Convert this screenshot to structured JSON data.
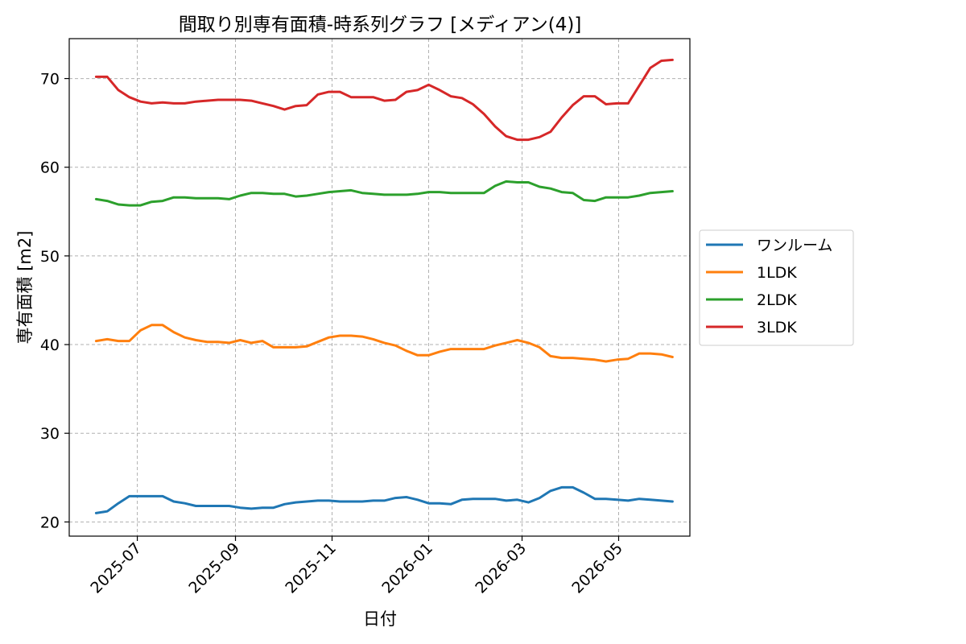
{
  "chart_data": {
    "type": "line",
    "title": "間取り別専有面積-時系列グラフ [メディアン(4)]",
    "xlabel": "日付",
    "ylabel": "専有面積 [m2]",
    "x_tick_labels": [
      "2025-07",
      "2025-09",
      "2025-11",
      "2026-01",
      "2026-03",
      "2026-05"
    ],
    "x_tick_dates": [
      "2025-07-01",
      "2025-09-01",
      "2025-11-01",
      "2026-01-01",
      "2026-03-01",
      "2026-05-01"
    ],
    "x_range": [
      "2025-05-19",
      "2026-06-15"
    ],
    "y_ticks": [
      20,
      30,
      40,
      50,
      60,
      70
    ],
    "ylim": [
      18.4,
      74.5
    ],
    "grid": true,
    "legend_position": "right",
    "x": [
      "2025-06-05",
      "2025-06-12",
      "2025-06-19",
      "2025-06-26",
      "2025-07-03",
      "2025-07-10",
      "2025-07-17",
      "2025-07-24",
      "2025-07-31",
      "2025-08-07",
      "2025-08-14",
      "2025-08-21",
      "2025-08-28",
      "2025-09-04",
      "2025-09-11",
      "2025-09-18",
      "2025-09-25",
      "2025-10-02",
      "2025-10-09",
      "2025-10-16",
      "2025-10-23",
      "2025-10-30",
      "2025-11-06",
      "2025-11-13",
      "2025-11-20",
      "2025-11-27",
      "2025-12-04",
      "2025-12-11",
      "2025-12-18",
      "2025-12-25",
      "2026-01-01",
      "2026-01-08",
      "2026-01-15",
      "2026-01-22",
      "2026-01-29",
      "2026-02-05",
      "2026-02-12",
      "2026-02-19",
      "2026-02-26",
      "2026-03-05",
      "2026-03-12",
      "2026-03-19",
      "2026-03-26",
      "2026-04-02",
      "2026-04-09",
      "2026-04-16",
      "2026-04-23",
      "2026-04-30",
      "2026-05-07",
      "2026-05-14",
      "2026-05-21",
      "2026-05-28",
      "2026-06-04"
    ],
    "series": [
      {
        "name": "ワンルーム",
        "color": "#1f77b4",
        "values": [
          21.0,
          21.2,
          22.1,
          22.9,
          22.9,
          22.9,
          22.9,
          22.3,
          22.1,
          21.8,
          21.8,
          21.8,
          21.8,
          21.6,
          21.5,
          21.6,
          21.6,
          22.0,
          22.2,
          22.3,
          22.4,
          22.4,
          22.3,
          22.3,
          22.3,
          22.4,
          22.4,
          22.7,
          22.8,
          22.5,
          22.1,
          22.1,
          22.0,
          22.5,
          22.6,
          22.6,
          22.6,
          22.4,
          22.5,
          22.2,
          22.7,
          23.5,
          23.9,
          23.9,
          23.3,
          22.6,
          22.6,
          22.5,
          22.4,
          22.6,
          22.5,
          22.4,
          22.3
        ]
      },
      {
        "name": "1LDK",
        "color": "#ff7f0e",
        "values": [
          40.4,
          40.6,
          40.4,
          40.4,
          41.6,
          42.2,
          42.2,
          41.4,
          40.8,
          40.5,
          40.3,
          40.3,
          40.2,
          40.5,
          40.2,
          40.4,
          39.7,
          39.7,
          39.7,
          39.8,
          40.3,
          40.8,
          41.0,
          41.0,
          40.9,
          40.6,
          40.2,
          39.9,
          39.3,
          38.8,
          38.8,
          39.2,
          39.5,
          39.5,
          39.5,
          39.5,
          39.9,
          40.2,
          40.5,
          40.2,
          39.7,
          38.7,
          38.5,
          38.5,
          38.4,
          38.3,
          38.1,
          38.3,
          38.4,
          39.0,
          39.0,
          38.9,
          38.6
        ]
      },
      {
        "name": "2LDK",
        "color": "#2ca02c",
        "values": [
          56.4,
          56.2,
          55.8,
          55.7,
          55.7,
          56.1,
          56.2,
          56.6,
          56.6,
          56.5,
          56.5,
          56.5,
          56.4,
          56.8,
          57.1,
          57.1,
          57.0,
          57.0,
          56.7,
          56.8,
          57.0,
          57.2,
          57.3,
          57.4,
          57.1,
          57.0,
          56.9,
          56.9,
          56.9,
          57.0,
          57.2,
          57.2,
          57.1,
          57.1,
          57.1,
          57.1,
          57.9,
          58.4,
          58.3,
          58.3,
          57.8,
          57.6,
          57.2,
          57.1,
          56.3,
          56.2,
          56.6,
          56.6,
          56.6,
          56.8,
          57.1,
          57.2,
          57.3
        ]
      },
      {
        "name": "3LDK",
        "color": "#d62728",
        "values": [
          70.2,
          70.2,
          68.7,
          67.9,
          67.4,
          67.2,
          67.3,
          67.2,
          67.2,
          67.4,
          67.5,
          67.6,
          67.6,
          67.6,
          67.5,
          67.2,
          66.9,
          66.5,
          66.9,
          67.0,
          68.2,
          68.5,
          68.5,
          67.9,
          67.9,
          67.9,
          67.5,
          67.6,
          68.5,
          68.7,
          69.3,
          68.7,
          68.0,
          67.8,
          67.1,
          66.0,
          64.6,
          63.5,
          63.1,
          63.1,
          63.4,
          64.0,
          65.6,
          67.0,
          68.0,
          68.0,
          67.1,
          67.2,
          67.2,
          69.2,
          71.2,
          72.0,
          72.1
        ]
      }
    ]
  }
}
